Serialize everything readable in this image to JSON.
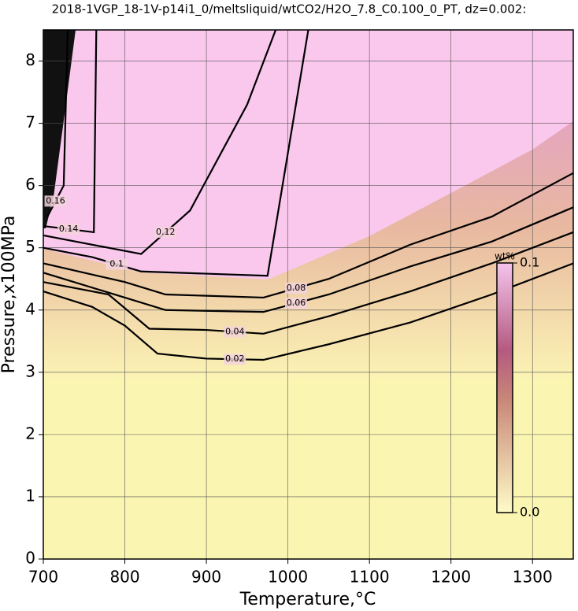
{
  "chart_data": {
    "type": "contour",
    "title": "2018-1VGP_18-1V-p14i1_0/meltsliquid/wtCO2/H2O_7.8_C0.100_0_PT, dz=0.002:",
    "x_label": "Temperature,°C",
    "y_label": "Pressure,x100MPa",
    "xlim": [
      700,
      1350
    ],
    "ylim": [
      0,
      8.5
    ],
    "xticks": [
      700,
      800,
      900,
      1000,
      1100,
      1200,
      1300
    ],
    "yticks": [
      0,
      1,
      2,
      3,
      4,
      5,
      6,
      7,
      8
    ],
    "grid": true,
    "colorbar": {
      "label": "wt%",
      "clim": [
        0,
        0.1
      ],
      "ticks": [
        {
          "value": 0,
          "label": "0.0"
        },
        0.1
      ]
    },
    "contours": [
      {
        "level": 0.02,
        "x": [
          700,
          760,
          800,
          840,
          900,
          970,
          1050,
          1150,
          1250,
          1350
        ],
        "y": [
          4.3,
          4.05,
          3.75,
          3.3,
          3.22,
          3.2,
          3.45,
          3.8,
          4.25,
          4.75
        ]
      },
      {
        "level": 0.04,
        "x": [
          700,
          780,
          830,
          900,
          970,
          1050,
          1150,
          1250,
          1350
        ],
        "y": [
          4.45,
          4.25,
          3.7,
          3.68,
          3.62,
          3.9,
          4.3,
          4.75,
          5.25
        ]
      },
      {
        "level": 0.06,
        "x": [
          700,
          800,
          850,
          970,
          1050,
          1150,
          1250,
          1350
        ],
        "y": [
          4.6,
          4.2,
          4.0,
          3.97,
          4.25,
          4.7,
          5.1,
          5.65
        ]
      },
      {
        "level": 0.08,
        "x": [
          700,
          800,
          850,
          970,
          1050,
          1150,
          1250,
          1350
        ],
        "y": [
          4.75,
          4.45,
          4.25,
          4.2,
          4.5,
          5.05,
          5.5,
          6.2
        ]
      },
      {
        "level": 0.1,
        "x": [
          700,
          760,
          820,
          975,
          1025
        ],
        "y": [
          5.0,
          4.85,
          4.62,
          4.55,
          8.5
        ]
      },
      {
        "level": 0.12,
        "x": [
          700,
          820,
          880,
          950,
          985
        ],
        "y": [
          5.2,
          4.9,
          5.6,
          7.3,
          8.5
        ]
      },
      {
        "level": 0.14,
        "x": [
          700,
          762,
          765
        ],
        "y": [
          5.35,
          5.25,
          8.5
        ]
      },
      {
        "level": 0.16,
        "x": [
          705,
          725,
          730
        ],
        "y": [
          5.5,
          6.0,
          8.5
        ]
      }
    ]
  }
}
